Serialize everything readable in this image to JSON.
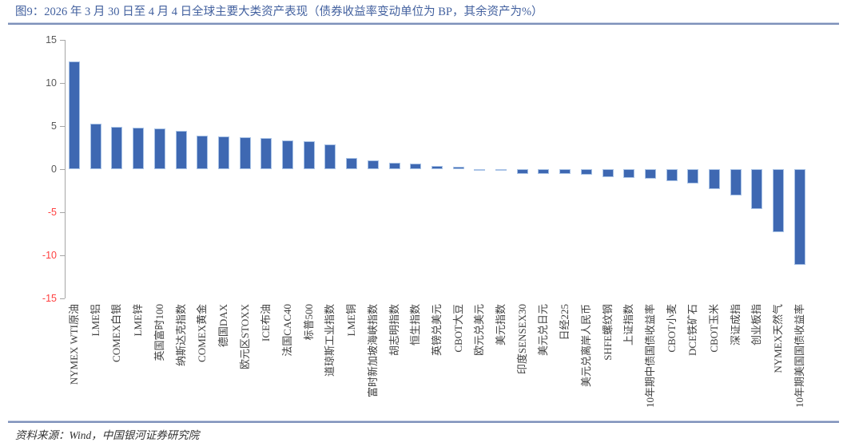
{
  "header": {
    "title": "图9：2026 年 3 月 30 日至 4 月 4 日全球主要大类资产表现（债券收益率变动单位为 BP，其余资产为%）"
  },
  "footer": {
    "source": "资料来源：Wind，中国银河证券研究院"
  },
  "colors": {
    "title_text": "#43619f",
    "divider": "#7d90ba",
    "bar_fill": "#3e68b2",
    "bar_border": "#a9c3e6",
    "axis_line": "#a6a6a6",
    "tick_label_positive": "#595959",
    "tick_label_negative": "#ff4040",
    "category_label": "#404040"
  },
  "chart_data": {
    "type": "bar",
    "title": "2026年3月30日至4月4日全球主要大类资产表现",
    "unit_note": "债券收益率变动单位为 BP，其余资产为%",
    "xlabel": "",
    "ylabel": "",
    "ylim": [
      -15,
      15
    ],
    "yticks": [
      15,
      10,
      5,
      0,
      -5,
      -10,
      -15
    ],
    "grid": false,
    "legend": "none",
    "categories": [
      "NYMEX WTI原油",
      "LME铝",
      "COMEX白银",
      "LME锌",
      "英国富时100",
      "纳斯达克指数",
      "COMEX黄金",
      "德国DAX",
      "欧元区STOXX",
      "ICE布油",
      "法国CAC40",
      "标普500",
      "道琼斯工业指数",
      "LME铜",
      "富时新加坡海峡指数",
      "胡志明指数",
      "恒生指数",
      "英镑兑美元",
      "CBOT大豆",
      "欧元兑美元",
      "美元指数",
      "印度SENSEX30",
      "美元兑日元",
      "日经225",
      "美元兑离岸人民币",
      "SHFE螺纹钢",
      "上证指数",
      "10年期中债国债收益率",
      "CBOT小麦",
      "DCE铁矿石",
      "CBOT玉米",
      "深证成指",
      "创业板指",
      "NYMEX天然气",
      "10年期美国国债收益率"
    ],
    "values": [
      12.5,
      5.3,
      4.9,
      4.8,
      4.7,
      4.4,
      3.9,
      3.8,
      3.7,
      3.6,
      3.3,
      3.2,
      2.9,
      1.3,
      1.0,
      0.7,
      0.65,
      0.35,
      0.3,
      -0.05,
      -0.08,
      -0.55,
      -0.6,
      -0.6,
      -0.65,
      -0.9,
      -1.0,
      -1.1,
      -1.4,
      -1.7,
      -2.3,
      -3.1,
      -4.6,
      -7.3,
      -11.1
    ]
  }
}
